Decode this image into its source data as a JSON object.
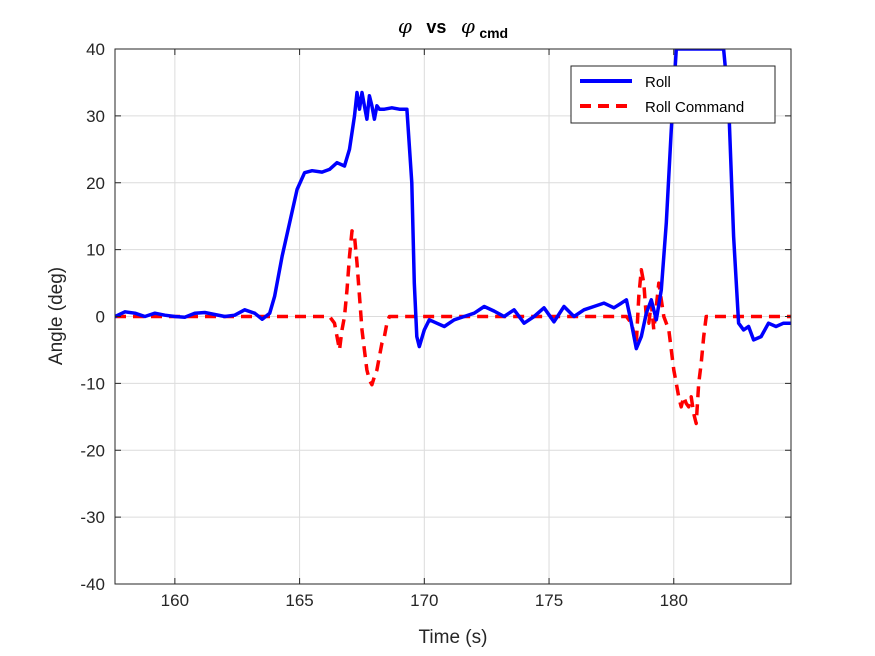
{
  "chart_data": {
    "type": "line",
    "title": {
      "symbol": "φ",
      "joiner": "vs",
      "symbol2": "φ",
      "subscript": "cmd"
    },
    "xlabel": "Time (s)",
    "ylabel": "Angle (deg)",
    "xlim": [
      157.6,
      184.7
    ],
    "ylim": [
      -40,
      40
    ],
    "xticks": [
      160,
      165,
      170,
      175,
      180
    ],
    "xtick_labels": [
      "160",
      "165",
      "170",
      "175",
      "180"
    ],
    "yticks": [
      -40,
      -30,
      -20,
      -10,
      0,
      10,
      20,
      30,
      40
    ],
    "ytick_labels": [
      "-40",
      "-30",
      "-20",
      "-10",
      "0",
      "10",
      "20",
      "30",
      "40"
    ],
    "grid": true,
    "legend": {
      "position": "top-right",
      "entries": [
        "Roll",
        "Roll Command"
      ]
    },
    "series": [
      {
        "name": "Roll",
        "color": "#0000ff",
        "style": "solid",
        "x": [
          157.6,
          158.0,
          158.4,
          158.8,
          159.2,
          159.6,
          160.0,
          160.4,
          160.8,
          161.2,
          161.6,
          162.0,
          162.4,
          162.8,
          163.2,
          163.5,
          163.8,
          164.0,
          164.3,
          164.6,
          164.9,
          165.2,
          165.5,
          165.9,
          166.2,
          166.5,
          166.8,
          167.0,
          167.2,
          167.3,
          167.4,
          167.5,
          167.6,
          167.7,
          167.8,
          167.9,
          168.0,
          168.1,
          168.2,
          168.4,
          168.7,
          169.0,
          169.3,
          169.5,
          169.6,
          169.7,
          169.8,
          170.0,
          170.2,
          170.5,
          170.8,
          171.2,
          171.6,
          172.0,
          172.4,
          172.8,
          173.2,
          173.6,
          174.0,
          174.4,
          174.8,
          175.2,
          175.6,
          176.0,
          176.4,
          176.8,
          177.2,
          177.6,
          177.9,
          178.1,
          178.3,
          178.5,
          178.7,
          178.9,
          179.1,
          179.3,
          179.5,
          179.7,
          179.9,
          180.1,
          180.3,
          180.5,
          180.8,
          181.1,
          181.4,
          181.7,
          182.0,
          182.2,
          182.4,
          182.6,
          182.8,
          183.0,
          183.2,
          183.5,
          183.8,
          184.1,
          184.4,
          184.7
        ],
        "y": [
          0.0,
          0.7,
          0.5,
          0.0,
          0.5,
          0.2,
          0.0,
          -0.1,
          0.5,
          0.6,
          0.3,
          0.0,
          0.2,
          1.0,
          0.5,
          -0.4,
          0.5,
          3.0,
          9.0,
          14.0,
          19.0,
          21.5,
          21.8,
          21.6,
          22.0,
          23.0,
          22.5,
          25.0,
          30.0,
          33.5,
          31.0,
          33.5,
          31.5,
          29.5,
          33.0,
          31.5,
          29.5,
          31.5,
          31.0,
          31.0,
          31.2,
          31.0,
          31.0,
          20.0,
          5.0,
          -3.0,
          -4.5,
          -2.0,
          -0.5,
          -1.0,
          -1.5,
          -0.5,
          0.0,
          0.5,
          1.5,
          0.8,
          0.0,
          1.0,
          -1.0,
          0.0,
          1.3,
          -0.8,
          1.5,
          0.0,
          1.0,
          1.5,
          2.0,
          1.3,
          2.0,
          2.5,
          -1.0,
          -4.8,
          -3.0,
          0.5,
          2.5,
          -0.5,
          4.0,
          14.0,
          28.0,
          40.0,
          40.0,
          40.0,
          40.0,
          40.0,
          40.0,
          40.0,
          40.0,
          32.0,
          12.0,
          -1.0,
          -2.0,
          -1.5,
          -3.5,
          -3.0,
          -1.0,
          -1.5,
          -1.0,
          -1.0
        ]
      },
      {
        "name": "Roll Command",
        "color": "#ff0000",
        "style": "dashed",
        "x": [
          157.6,
          166.2,
          166.4,
          166.5,
          166.6,
          166.7,
          166.8,
          166.9,
          167.0,
          167.1,
          167.2,
          167.3,
          167.4,
          167.5,
          167.6,
          167.7,
          167.8,
          167.9,
          168.0,
          168.1,
          168.2,
          168.3,
          168.4,
          168.5,
          168.6,
          168.7,
          168.8,
          178.1,
          178.3,
          178.5,
          178.6,
          178.7,
          178.8,
          178.9,
          179.0,
          179.1,
          179.2,
          179.4,
          179.6,
          179.8,
          180.0,
          180.1,
          180.2,
          180.3,
          180.4,
          180.5,
          180.6,
          180.7,
          180.8,
          180.9,
          181.0,
          181.1,
          181.2,
          181.3,
          184.7
        ],
        "y": [
          0,
          0,
          -1.0,
          -3.0,
          -5.0,
          -2.0,
          0.0,
          4.0,
          9.0,
          12.8,
          12.0,
          8.0,
          3.0,
          -2.0,
          -5.0,
          -8.0,
          -9.5,
          -10.2,
          -9.0,
          -8.0,
          -6.0,
          -4.0,
          -3.0,
          -1.0,
          0,
          0,
          0,
          0,
          -1.0,
          -4.0,
          3.0,
          7.0,
          5.0,
          0.0,
          -1.0,
          2.0,
          -2.0,
          5.0,
          0.0,
          -2.0,
          -8.0,
          -10.0,
          -12.0,
          -13.5,
          -12.0,
          -13.0,
          -13.5,
          -12.0,
          -14.5,
          -16.0,
          -10.0,
          -7.0,
          -3.0,
          0,
          0
        ]
      }
    ]
  }
}
